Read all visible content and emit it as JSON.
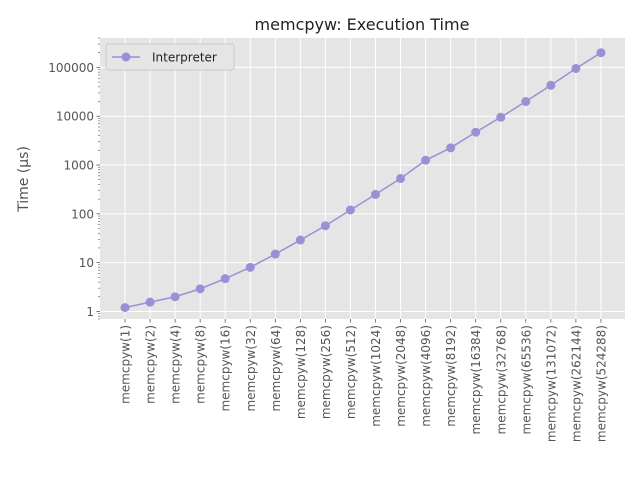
{
  "chart_data": {
    "type": "line",
    "title": "memcpyw: Execution Time",
    "xlabel": "",
    "ylabel": "Time (µs)",
    "yscale": "log",
    "ylim": [
      0.7,
      400000
    ],
    "yticks": [
      1,
      10,
      100,
      1000,
      10000,
      100000
    ],
    "ytick_labels": [
      "1",
      "10",
      "100",
      "1000",
      "10000",
      "100000"
    ],
    "grid": true,
    "legend_position": "top-left",
    "categories": [
      "memcpyw(1)",
      "memcpyw(2)",
      "memcpyw(4)",
      "memcpyw(8)",
      "memcpyw(16)",
      "memcpyw(32)",
      "memcpyw(64)",
      "memcpyw(128)",
      "memcpyw(256)",
      "memcpyw(512)",
      "memcpyw(1024)",
      "memcpyw(2048)",
      "memcpyw(4096)",
      "memcpyw(8192)",
      "memcpyw(16384)",
      "memcpyw(32768)",
      "memcpyw(65536)",
      "memcpyw(131072)",
      "memcpyw(262144)",
      "memcpyw(524288)"
    ],
    "series": [
      {
        "name": "Interpreter",
        "color": "#9b8fd6",
        "values": [
          1.2,
          1.55,
          2.0,
          2.9,
          4.7,
          8.0,
          15,
          29,
          57,
          120,
          250,
          530,
          1250,
          2250,
          4700,
          9500,
          20000,
          43000,
          95000,
          200000
        ]
      }
    ]
  }
}
